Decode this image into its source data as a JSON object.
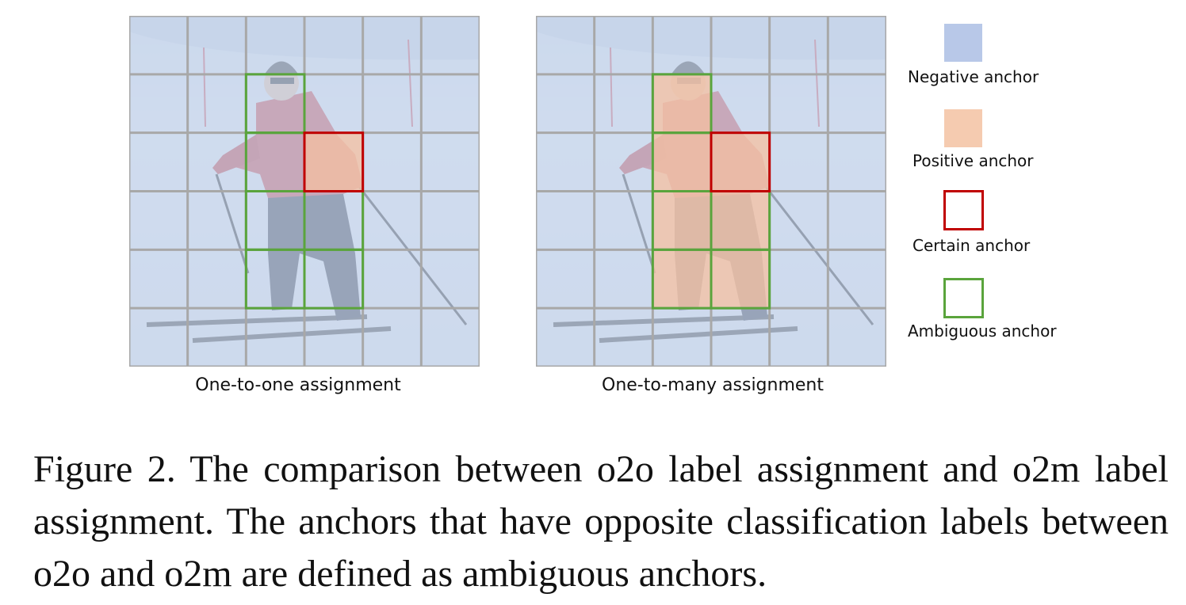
{
  "panels": [
    {
      "caption": "One-to-one assignment",
      "positive_cells": [
        [
          2,
          3
        ]
      ],
      "certain_cells": [
        [
          2,
          3
        ]
      ],
      "ambiguous_cells": [
        [
          1,
          2
        ],
        [
          2,
          2
        ],
        [
          3,
          2
        ],
        [
          4,
          2
        ],
        [
          3,
          3
        ],
        [
          4,
          3
        ]
      ]
    },
    {
      "caption": "One-to-many assignment",
      "positive_cells": [
        [
          1,
          2
        ],
        [
          2,
          2
        ],
        [
          3,
          2
        ],
        [
          4,
          2
        ],
        [
          2,
          3
        ],
        [
          3,
          3
        ],
        [
          4,
          3
        ]
      ],
      "certain_cells": [
        [
          2,
          3
        ]
      ],
      "ambiguous_cells": [
        [
          1,
          2
        ],
        [
          2,
          2
        ],
        [
          3,
          2
        ],
        [
          4,
          2
        ],
        [
          3,
          3
        ],
        [
          4,
          3
        ]
      ]
    }
  ],
  "grid": {
    "rows": 6,
    "cols": 6
  },
  "legend": [
    {
      "label": "Negative anchor",
      "kind": "fill",
      "color": "#b8c8e8"
    },
    {
      "label": "Positive anchor",
      "kind": "fill",
      "color": "#f5cbb0"
    },
    {
      "label": "Certain anchor",
      "kind": "outline",
      "color": "#c00000"
    },
    {
      "label": "Ambiguous anchor",
      "kind": "outline",
      "color": "#5aa43c"
    }
  ],
  "colors": {
    "overlay_blue": "#c3d3ea",
    "overlay_peach": "#f6c0a0",
    "grid_line": "#a8a8a8",
    "certain": "#c00000",
    "ambiguous": "#5aa43c"
  },
  "figure_caption": "Figure 2. The comparison between o2o label assignment and o2m label assignment. The anchors that have opposite classification labels between o2o and o2m are defined as ambiguous anchors."
}
